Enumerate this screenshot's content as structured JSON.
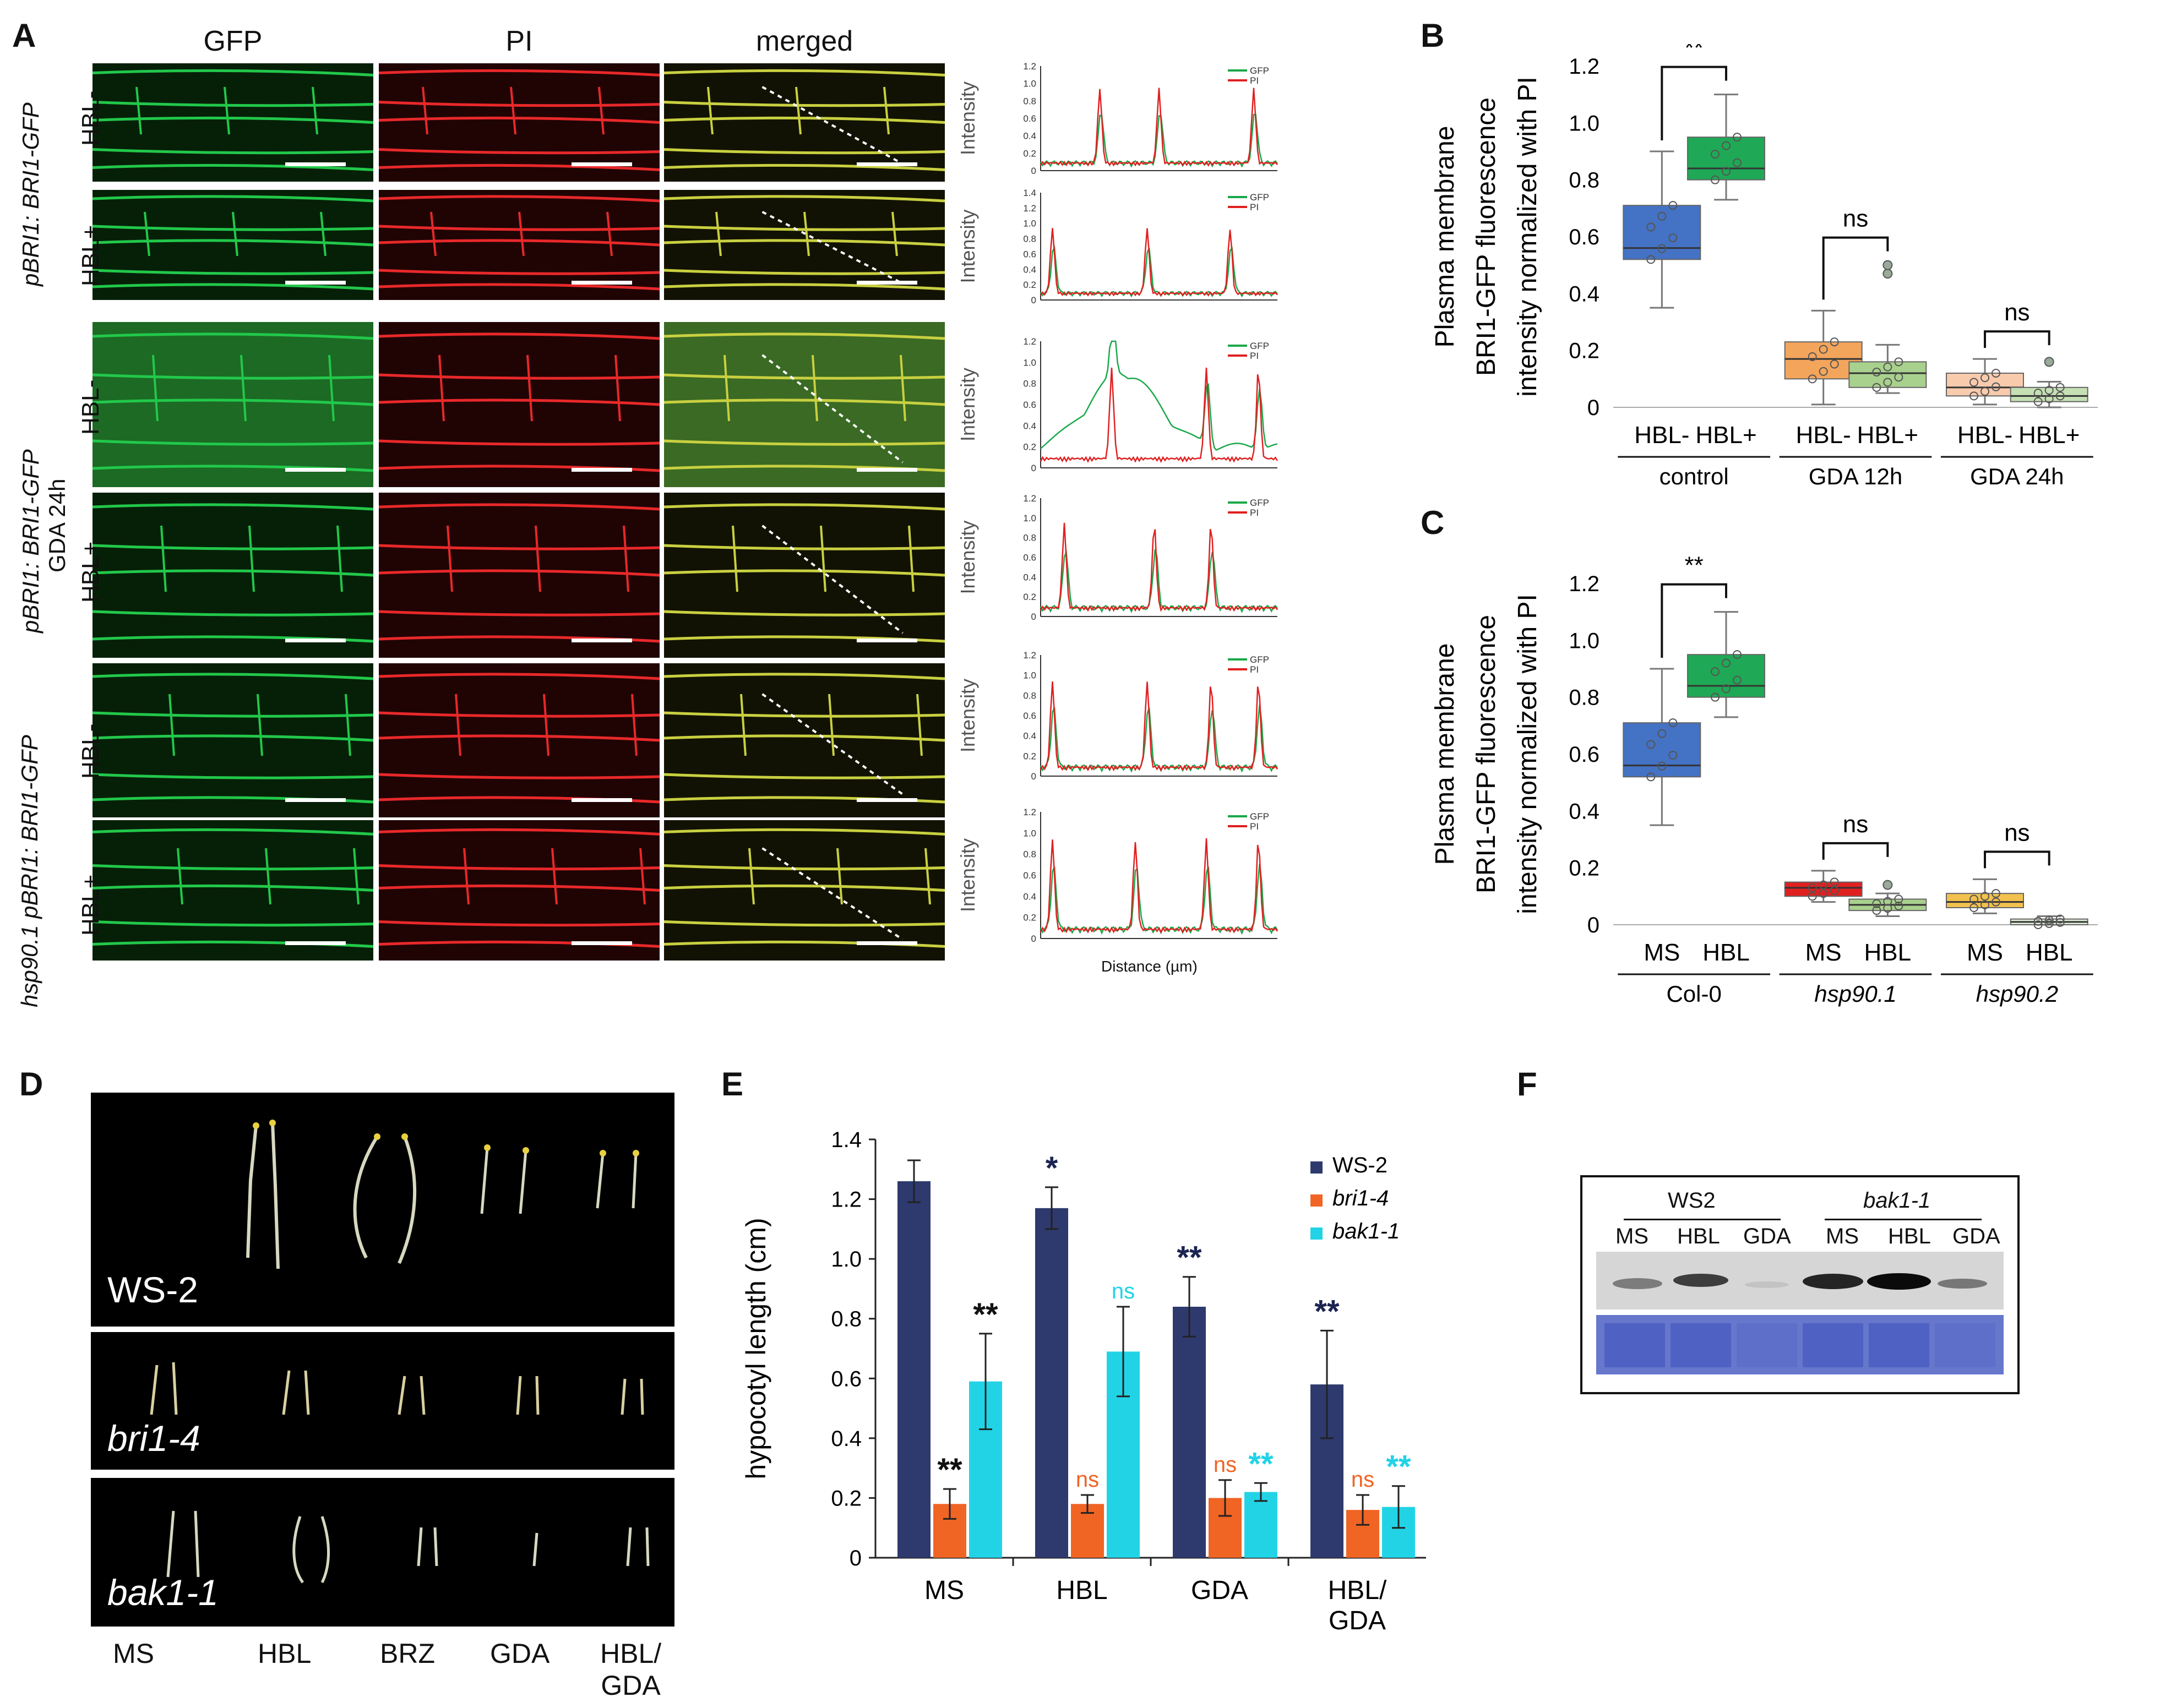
{
  "panels": {
    "A": "A",
    "B": "B",
    "C": "C",
    "D": "D",
    "E": "E",
    "F": "F"
  },
  "panelA": {
    "columns": [
      "GFP",
      "PI",
      "merged"
    ],
    "rows": [
      "HBL-",
      "HBL+",
      "HBL-",
      "HBL+",
      "HBL-",
      "HBL+"
    ],
    "genotypes": [
      "pBRI1: BRI1-GFP",
      "pBRI1: BRI1-GFP",
      "GDA 24h",
      "hsp90.1 pBRI1: BRI1-GFP"
    ],
    "profile_ylabel": "Intensity",
    "profile_xlabel": "Distance (µm)",
    "legend": [
      "GFP",
      "PI"
    ],
    "colors": {
      "gfp": "#1aa84a",
      "pi": "#e02020"
    }
  },
  "chart_data": [
    {
      "id": "B",
      "type": "box",
      "ylabel": [
        "Plasma membrane",
        "BRI1-GFP fluorescence",
        "intensity normalized with PI"
      ],
      "ylim": [
        0,
        1.2
      ],
      "yticks": [
        "0",
        "0.2",
        "0.4",
        "0.6",
        "0.8",
        "1.0",
        "1.2"
      ],
      "categories": [
        "HBL-",
        "HBL+",
        "HBL-",
        "HBL+",
        "HBL-",
        "HBL+"
      ],
      "groups": [
        "control",
        "GDA 12h",
        "GDA 24h"
      ],
      "boxes": [
        {
          "min": 0.35,
          "q1": 0.52,
          "median": 0.56,
          "q3": 0.71,
          "max": 0.9,
          "color": "#4472c4",
          "outliers": []
        },
        {
          "min": 0.73,
          "q1": 0.8,
          "median": 0.84,
          "q3": 0.95,
          "max": 1.1,
          "color": "#1fa855",
          "outliers": []
        },
        {
          "min": 0.01,
          "q1": 0.1,
          "median": 0.17,
          "q3": 0.23,
          "max": 0.34,
          "color": "#f4a55c",
          "outliers": []
        },
        {
          "min": 0.05,
          "q1": 0.07,
          "median": 0.12,
          "q3": 0.16,
          "max": 0.22,
          "color": "#a9d18e",
          "outliers": [
            0.47,
            0.5
          ]
        },
        {
          "min": 0.01,
          "q1": 0.04,
          "median": 0.07,
          "q3": 0.12,
          "max": 0.17,
          "color": "#f8cbad",
          "outliers": []
        },
        {
          "min": 0.0,
          "q1": 0.02,
          "median": 0.04,
          "q3": 0.07,
          "max": 0.09,
          "color": "#c5e0b4",
          "outliers": [
            0.16
          ]
        }
      ],
      "significance": [
        "**",
        "ns",
        "ns"
      ]
    },
    {
      "id": "C",
      "type": "box",
      "ylabel": [
        "Plasma membrane",
        "BRI1-GFP fluorescence",
        "intensity normalized with PI"
      ],
      "ylim": [
        0,
        1.2
      ],
      "yticks": [
        "0",
        "0.2",
        "0.4",
        "0.6",
        "0.8",
        "1.0",
        "1.2"
      ],
      "categories": [
        "MS",
        "HBL",
        "MS",
        "HBL",
        "MS",
        "HBL"
      ],
      "groups": [
        "Col-0",
        "hsp90.1",
        "hsp90.2"
      ],
      "boxes": [
        {
          "min": 0.35,
          "q1": 0.52,
          "median": 0.56,
          "q3": 0.71,
          "max": 0.9,
          "color": "#4472c4",
          "outliers": []
        },
        {
          "min": 0.73,
          "q1": 0.8,
          "median": 0.84,
          "q3": 0.95,
          "max": 1.1,
          "color": "#1fa855",
          "outliers": []
        },
        {
          "min": 0.08,
          "q1": 0.1,
          "median": 0.13,
          "q3": 0.15,
          "max": 0.19,
          "color": "#e02020",
          "outliers": []
        },
        {
          "min": 0.03,
          "q1": 0.05,
          "median": 0.07,
          "q3": 0.09,
          "max": 0.11,
          "color": "#a9d18e",
          "outliers": [
            0.14
          ]
        },
        {
          "min": 0.04,
          "q1": 0.06,
          "median": 0.08,
          "q3": 0.11,
          "max": 0.16,
          "color": "#f2c14e",
          "outliers": []
        },
        {
          "min": 0.0,
          "q1": 0.0,
          "median": 0.01,
          "q3": 0.02,
          "max": 0.03,
          "color": "#e2f0d9",
          "outliers": []
        }
      ],
      "significance": [
        "**",
        "ns",
        "ns"
      ]
    },
    {
      "id": "E",
      "type": "bar",
      "ylabel": "hypocotyl length (cm)",
      "ylim": [
        0,
        1.4
      ],
      "yticks": [
        "0",
        "0.2",
        "0.4",
        "0.6",
        "0.8",
        "1.0",
        "1.2",
        "1.4"
      ],
      "categories": [
        "MS",
        "HBL",
        "GDA",
        "HBL/\nGDA"
      ],
      "series": [
        {
          "name": "WS-2",
          "color": "#2e3a6e",
          "values": [
            1.26,
            1.17,
            0.84,
            0.58
          ],
          "errors": [
            0.07,
            0.07,
            0.1,
            0.18
          ],
          "sig": [
            "",
            "*",
            "**",
            "**"
          ]
        },
        {
          "name": "bri1-4",
          "color": "#f06424",
          "values": [
            0.18,
            0.18,
            0.2,
            0.16
          ],
          "errors": [
            0.05,
            0.03,
            0.06,
            0.05
          ],
          "sig": [
            "**",
            "ns",
            "ns",
            "ns"
          ]
        },
        {
          "name": "bak1-1",
          "color": "#22d3e6",
          "values": [
            0.59,
            0.69,
            0.22,
            0.17
          ],
          "errors": [
            0.16,
            0.15,
            0.03,
            0.07
          ],
          "sig": [
            "**",
            "ns",
            "**",
            "**"
          ]
        }
      ],
      "sig_colors": {
        "WS-2": "#1c2452",
        "bri1-4": "#f06424",
        "bak1-1": "#22d3e6"
      },
      "ms_bri_sig_color": "#111111",
      "ms_bak_sig_color": "#111111"
    }
  ],
  "panelD": {
    "genotypes": [
      "WS-2",
      "bri1-4",
      "bak1-1"
    ],
    "treatments": [
      "MS",
      "HBL",
      "BRZ",
      "GDA",
      "HBL/\nGDA"
    ]
  },
  "panelF": {
    "groups": [
      "WS2",
      "bak1-1"
    ],
    "lanes": [
      "MS",
      "HBL",
      "GDA",
      "MS",
      "HBL",
      "GDA"
    ]
  }
}
